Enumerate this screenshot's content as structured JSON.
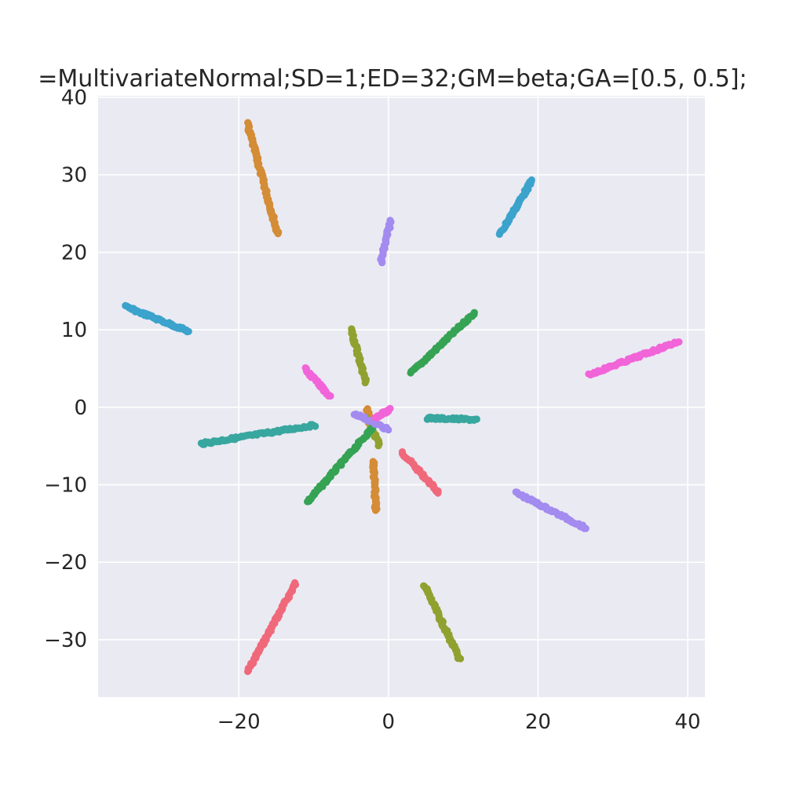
{
  "chart_data": {
    "type": "scatter",
    "title": "=MultivariateNormal;SD=1;ED=32;GM=beta;GA=[0.5, 0.5];",
    "xlabel": "",
    "ylabel": "",
    "xlim": [
      -38.8,
      42.3
    ],
    "ylim": [
      -37.4,
      40.2
    ],
    "x_ticks": [
      -20,
      0,
      20,
      40
    ],
    "y_ticks": [
      -30,
      -20,
      -10,
      0,
      10,
      20,
      30,
      40
    ],
    "x_tick_labels": [
      "−20",
      "0",
      "20",
      "40"
    ],
    "y_tick_labels": [
      "−30",
      "−20",
      "−10",
      "0",
      "10",
      "20",
      "30",
      "40"
    ],
    "grid": true,
    "background": "#eaeaf2",
    "grid_color": "#ffffff",
    "series": [
      {
        "color": "#f0697b",
        "segments": [
          [
            [
              -18.8,
              -34.1
            ],
            [
              -12.4,
              -22.7
            ]
          ],
          [
            [
              1.8,
              -5.8
            ],
            [
              6.7,
              -11.0
            ]
          ]
        ]
      },
      {
        "color": "#d48c36",
        "segments": [
          [
            [
              -18.9,
              36.7
            ],
            [
              -14.8,
              22.4
            ]
          ],
          [
            [
              -2.8,
              -0.2
            ],
            [
              -2.4,
              -2.7
            ]
          ],
          [
            [
              -2.0,
              -7.0
            ],
            [
              -1.7,
              -13.3
            ]
          ]
        ]
      },
      {
        "color": "#90a130",
        "segments": [
          [
            [
              -5.0,
              10.1
            ],
            [
              -3.0,
              3.2
            ]
          ],
          [
            [
              -2.9,
              -1.3
            ],
            [
              -1.2,
              -4.9
            ]
          ],
          [
            [
              4.8,
              -23.0
            ],
            [
              9.5,
              -32.5
            ]
          ]
        ]
      },
      {
        "color": "#35a353",
        "segments": [
          [
            [
              3.0,
              4.4
            ],
            [
              11.5,
              12.2
            ]
          ],
          [
            [
              -10.8,
              -12.2
            ],
            [
              -1.9,
              -2.4
            ]
          ]
        ]
      },
      {
        "color": "#38a79f",
        "segments": [
          [
            [
              -25.0,
              -4.7
            ],
            [
              -9.8,
              -2.3
            ]
          ],
          [
            [
              5.2,
              -1.4
            ],
            [
              11.8,
              -1.6
            ]
          ]
        ]
      },
      {
        "color": "#3ba3cc",
        "segments": [
          [
            [
              -35.2,
              13.0
            ],
            [
              -26.7,
              9.8
            ]
          ],
          [
            [
              14.9,
              22.3
            ],
            [
              19.2,
              29.3
            ]
          ]
        ]
      },
      {
        "color": "#a38bf0",
        "segments": [
          [
            [
              -1.0,
              18.7
            ],
            [
              0.3,
              24.1
            ]
          ],
          [
            [
              -4.5,
              -0.8
            ],
            [
              0.0,
              -2.9
            ]
          ],
          [
            [
              17.0,
              -11.0
            ],
            [
              26.4,
              -15.6
            ]
          ]
        ]
      },
      {
        "color": "#f165d9",
        "segments": [
          [
            [
              -11.2,
              5.0
            ],
            [
              -7.8,
              1.4
            ]
          ],
          [
            [
              -1.8,
              -1.3
            ],
            [
              0.3,
              -0.3
            ]
          ],
          [
            [
              26.8,
              4.2
            ],
            [
              38.8,
              8.5
            ]
          ]
        ]
      }
    ]
  }
}
